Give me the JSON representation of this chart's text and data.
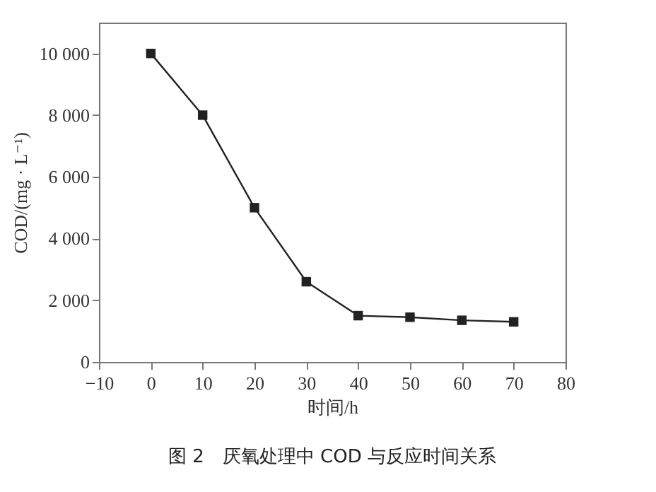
{
  "chart_data": {
    "type": "line",
    "xlabel": "时间/h",
    "ylabel": "COD/(mg · L⁻¹)",
    "annotations": [
      "图 2　厌氧处理中 COD 与反应时间关系"
    ],
    "x": [
      0,
      10,
      20,
      30,
      40,
      50,
      60,
      70
    ],
    "series": [
      {
        "color": "#222222",
        "values": [
          10000,
          8000,
          5000,
          2600,
          1500,
          1450,
          1350,
          1300
        ]
      }
    ],
    "xlim": [
      -10,
      80
    ],
    "xticks": [
      {
        "value": -10,
        "label": "−10"
      },
      0,
      10,
      20,
      30,
      40,
      50,
      60,
      70,
      80
    ],
    "ylim": [
      0,
      11000
    ],
    "yticks": [
      0,
      {
        "value": 2000,
        "label": "2 000"
      },
      {
        "value": 4000,
        "label": "4 000"
      },
      {
        "value": 6000,
        "label": "6 000"
      },
      {
        "value": 8000,
        "label": "8 000"
      },
      {
        "value": 10000,
        "label": "10 000"
      }
    ],
    "marker": "square",
    "grid": false,
    "legend": false
  }
}
